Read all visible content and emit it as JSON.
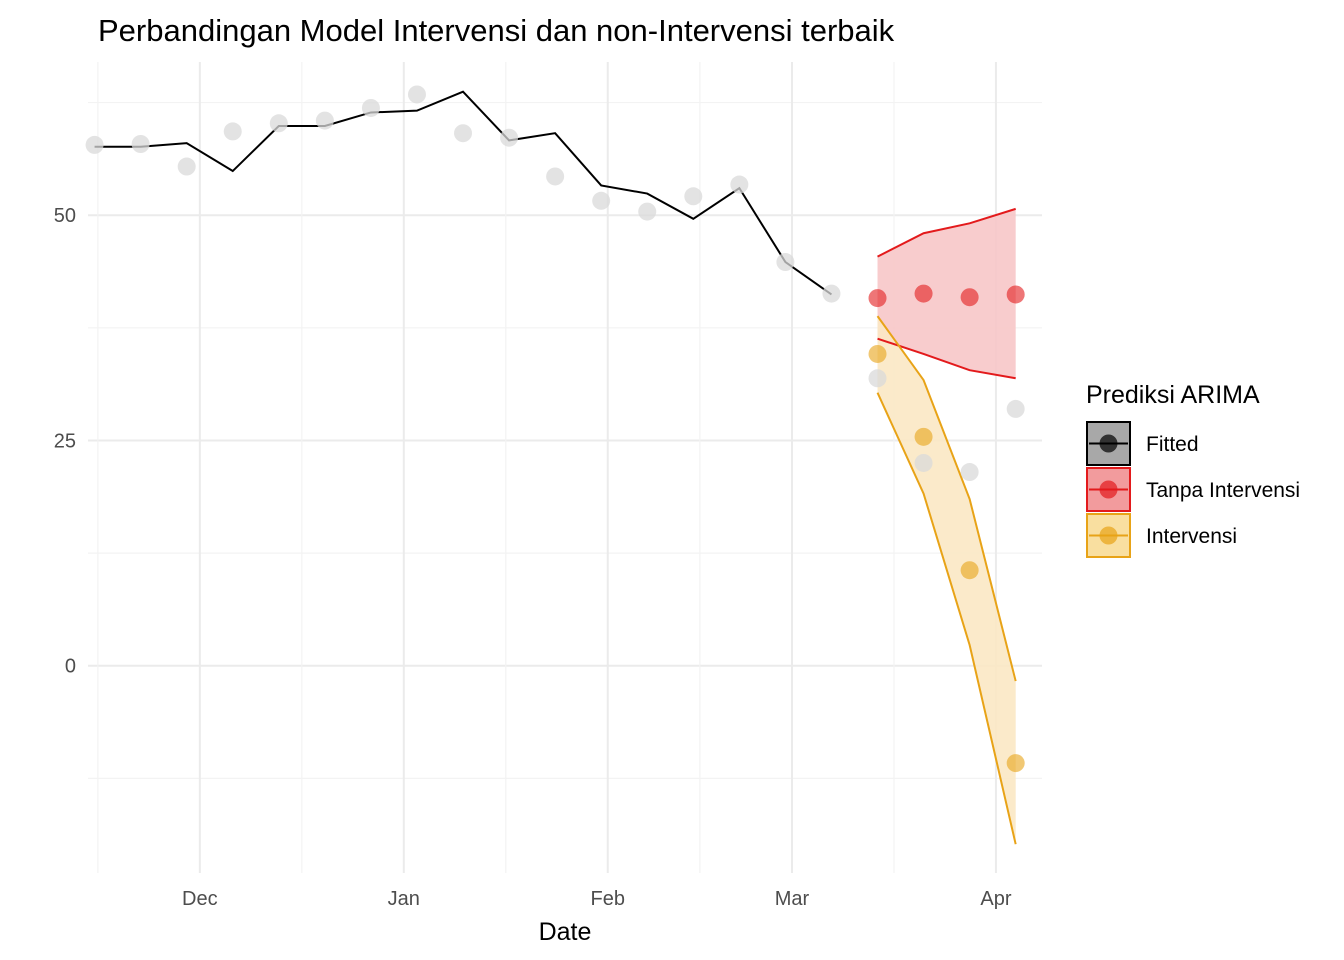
{
  "chart_data": {
    "type": "line",
    "title": "Perbandingan Model Intervensi dan non-Intervensi terbaik",
    "xlabel": "Date",
    "ylabel": "",
    "xlim": [
      "2022-11-14",
      "2023-04-08"
    ],
    "ylim": [
      -23,
      67
    ],
    "x_ticks": [
      {
        "date": "2022-12-01",
        "label": "Dec"
      },
      {
        "date": "2023-01-01",
        "label": "Jan"
      },
      {
        "date": "2023-02-01",
        "label": "Feb"
      },
      {
        "date": "2023-03-01",
        "label": "Mar"
      },
      {
        "date": "2023-04-01",
        "label": "Apr"
      }
    ],
    "y_ticks": [
      0,
      25,
      50
    ],
    "grid": true,
    "legend": {
      "title": "Prediksi ARIMA",
      "position": "right",
      "entries": [
        {
          "label": "Fitted",
          "color": "#000000",
          "fill": "#999999"
        },
        {
          "label": "Tanpa Intervensi",
          "color": "#e31a1c",
          "fill": "#f08a8c"
        },
        {
          "label": "Intervensi",
          "color": "#e8a317",
          "fill": "#f8d98f"
        }
      ]
    },
    "actual": {
      "color": "#d9d9d9",
      "points": [
        {
          "x": "2022-11-15",
          "y": 57.8
        },
        {
          "x": "2022-11-22",
          "y": 57.9
        },
        {
          "x": "2022-11-29",
          "y": 55.4
        },
        {
          "x": "2022-12-06",
          "y": 59.3
        },
        {
          "x": "2022-12-13",
          "y": 60.2
        },
        {
          "x": "2022-12-20",
          "y": 60.5
        },
        {
          "x": "2022-12-27",
          "y": 61.9
        },
        {
          "x": "2023-01-03",
          "y": 63.4
        },
        {
          "x": "2023-01-10",
          "y": 59.1
        },
        {
          "x": "2023-01-17",
          "y": 58.6
        },
        {
          "x": "2023-01-24",
          "y": 54.3
        },
        {
          "x": "2023-01-31",
          "y": 51.6
        },
        {
          "x": "2023-02-07",
          "y": 50.4
        },
        {
          "x": "2023-02-14",
          "y": 52.1
        },
        {
          "x": "2023-02-21",
          "y": 53.4
        },
        {
          "x": "2023-02-28",
          "y": 44.8
        },
        {
          "x": "2023-03-07",
          "y": 41.3
        },
        {
          "x": "2023-03-14",
          "y": 31.9
        },
        {
          "x": "2023-03-21",
          "y": 22.5
        },
        {
          "x": "2023-03-28",
          "y": 21.5
        },
        {
          "x": "2023-04-04",
          "y": 28.5
        }
      ]
    },
    "series": [
      {
        "name": "Fitted",
        "color": "#000000",
        "x": [
          "2022-11-15",
          "2022-11-22",
          "2022-11-29",
          "2022-12-06",
          "2022-12-13",
          "2022-12-20",
          "2022-12-27",
          "2023-01-03",
          "2023-01-10",
          "2023-01-17",
          "2023-01-24",
          "2023-01-31",
          "2023-02-07",
          "2023-02-14",
          "2023-02-21",
          "2023-02-28",
          "2023-03-07"
        ],
        "y": [
          57.6,
          57.6,
          58.0,
          54.9,
          59.9,
          59.9,
          61.4,
          61.6,
          63.7,
          58.3,
          59.1,
          53.3,
          52.4,
          49.6,
          53.0,
          44.8,
          41.2
        ]
      },
      {
        "name": "Tanpa Intervensi",
        "color": "#e31a1c",
        "band_fill": "#f7c6c8",
        "x": [
          "2023-03-14",
          "2023-03-21",
          "2023-03-28",
          "2023-04-04"
        ],
        "y": [
          40.8,
          41.3,
          40.9,
          41.2
        ],
        "lower": [
          36.3,
          34.6,
          32.8,
          31.9
        ],
        "upper": [
          45.4,
          48.0,
          49.1,
          50.7
        ]
      },
      {
        "name": "Intervensi",
        "color": "#e8a317",
        "band_fill": "#fbe8c4",
        "x": [
          "2023-03-14",
          "2023-03-21",
          "2023-03-28",
          "2023-04-04"
        ],
        "y": [
          34.6,
          25.4,
          10.6,
          -10.8
        ],
        "lower": [
          30.3,
          19.1,
          2.3,
          -19.8
        ],
        "upper": [
          38.8,
          31.7,
          18.5,
          -1.7
        ]
      }
    ]
  }
}
